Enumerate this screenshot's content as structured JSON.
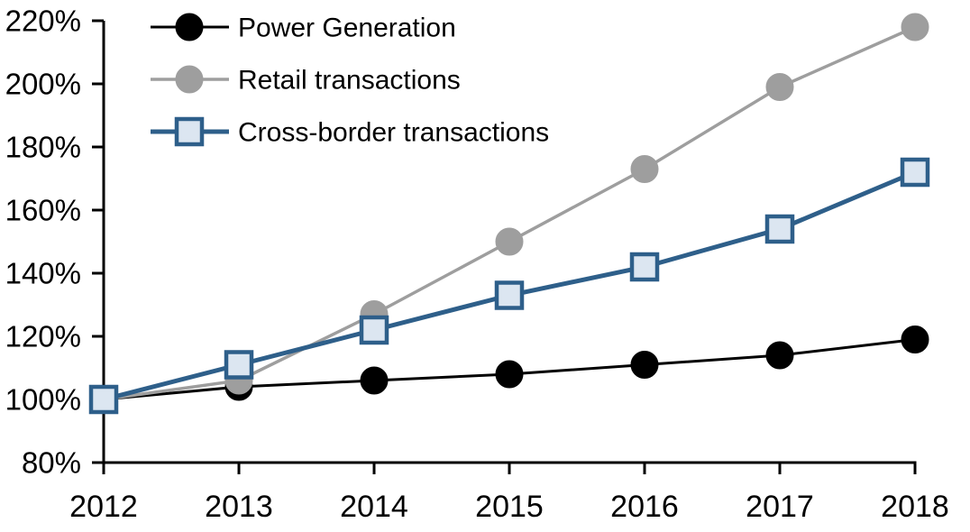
{
  "chart_data": {
    "type": "line",
    "title": "",
    "xlabel": "",
    "ylabel": "",
    "grid": false,
    "legend_position": "top-left-inside",
    "x": [
      2012,
      2013,
      2014,
      2015,
      2016,
      2017,
      2018
    ],
    "x_tick_labels": [
      "2012",
      "2013",
      "2014",
      "2015",
      "2016",
      "2017",
      "2018"
    ],
    "y_tick_labels": [
      "80%",
      "100%",
      "120%",
      "140%",
      "160%",
      "180%",
      "200%",
      "220%"
    ],
    "ylim": [
      80,
      220
    ],
    "ytick_step": 20,
    "axis_color": "#000000",
    "series": [
      {
        "name": "Power Generation",
        "values": [
          100,
          104,
          106,
          108,
          111,
          114,
          119
        ],
        "line_color": "#000000",
        "line_width": 3,
        "marker": "circle",
        "marker_fill": "#000000",
        "marker_stroke": "#000000",
        "marker_size": 15
      },
      {
        "name": "Retail transactions",
        "values": [
          100,
          106,
          127,
          150,
          173,
          199,
          218
        ],
        "line_color": "#9E9E9E",
        "line_width": 3.5,
        "marker": "circle",
        "marker_fill": "#9E9E9E",
        "marker_stroke": "#9E9E9E",
        "marker_size": 15
      },
      {
        "name": "Cross-border transactions",
        "values": [
          100,
          111,
          122,
          133,
          142,
          154,
          172
        ],
        "line_color": "#2E5F8A",
        "line_width": 5,
        "marker": "square",
        "marker_fill": "#DCE6F1",
        "marker_stroke": "#2E5F8A",
        "marker_size": 14
      }
    ]
  }
}
